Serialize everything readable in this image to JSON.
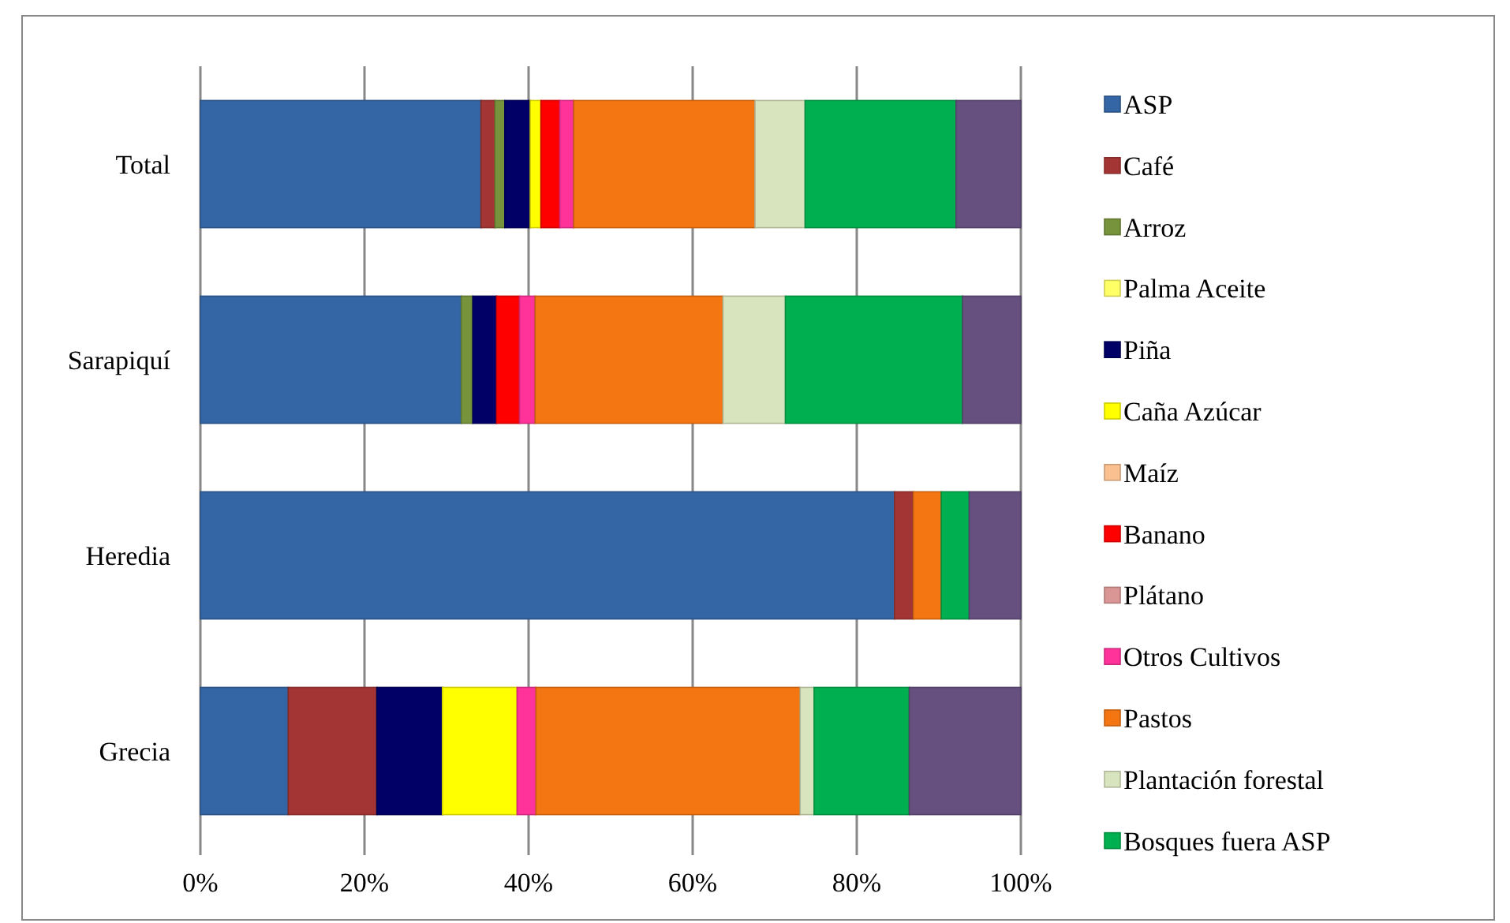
{
  "chart_data": {
    "type": "bar",
    "orientation": "horizontal",
    "stacked": true,
    "categories": [
      "Total",
      "Sarapiquí",
      "Heredia",
      "Grecia"
    ],
    "series": [
      {
        "name": "ASP",
        "color": "#3465a4",
        "values": [
          34.2,
          31.8,
          84.6,
          10.7
        ]
      },
      {
        "name": "Café",
        "color": "#a33634",
        "values": [
          1.7,
          0,
          2.3,
          10.8
        ]
      },
      {
        "name": "Arroz",
        "color": "#77933c",
        "values": [
          1.2,
          1.4,
          0,
          0
        ]
      },
      {
        "name": "Palma Aceite",
        "color": "#ffff66",
        "values": [
          0,
          0,
          0,
          0
        ]
      },
      {
        "name": "Piña",
        "color": "#000066",
        "values": [
          3.1,
          2.9,
          0,
          8.0
        ]
      },
      {
        "name": "Caña Azúcar",
        "color": "#ffff00",
        "values": [
          1.3,
          0,
          0,
          9.1
        ]
      },
      {
        "name": "Maíz",
        "color": "#fac090",
        "values": [
          0,
          0,
          0,
          0
        ]
      },
      {
        "name": "Banano",
        "color": "#ff0000",
        "values": [
          2.3,
          2.8,
          0,
          0
        ]
      },
      {
        "name": "Plátano",
        "color": "#d99694",
        "values": [
          0,
          0,
          0,
          0
        ]
      },
      {
        "name": "Otros Cultivos",
        "color": "#ff3399",
        "values": [
          1.7,
          1.9,
          0,
          2.3
        ]
      },
      {
        "name": "Pastos",
        "color": "#f37612",
        "values": [
          22.1,
          22.9,
          3.4,
          32.2
        ]
      },
      {
        "name": "Plantación forestal",
        "color": "#d7e4bd",
        "values": [
          6.1,
          7.6,
          0,
          1.7
        ]
      },
      {
        "name": "Bosques fuera ASP",
        "color": "#00b050",
        "values": [
          18.4,
          21.6,
          3.4,
          11.6
        ]
      },
      {
        "color": "#66507f",
        "values": [
          7.9,
          7.1,
          6.3,
          13.6
        ]
      }
    ],
    "xlim": [
      0,
      100
    ],
    "xticks": [
      {
        "value": 0,
        "label": "0%"
      },
      {
        "value": 20,
        "label": "20%"
      },
      {
        "value": 40,
        "label": "40%"
      },
      {
        "value": 60,
        "label": "60%"
      },
      {
        "value": 80,
        "label": "80%"
      },
      {
        "value": 100,
        "label": "100%"
      }
    ],
    "grid": "x",
    "legend": "right"
  }
}
